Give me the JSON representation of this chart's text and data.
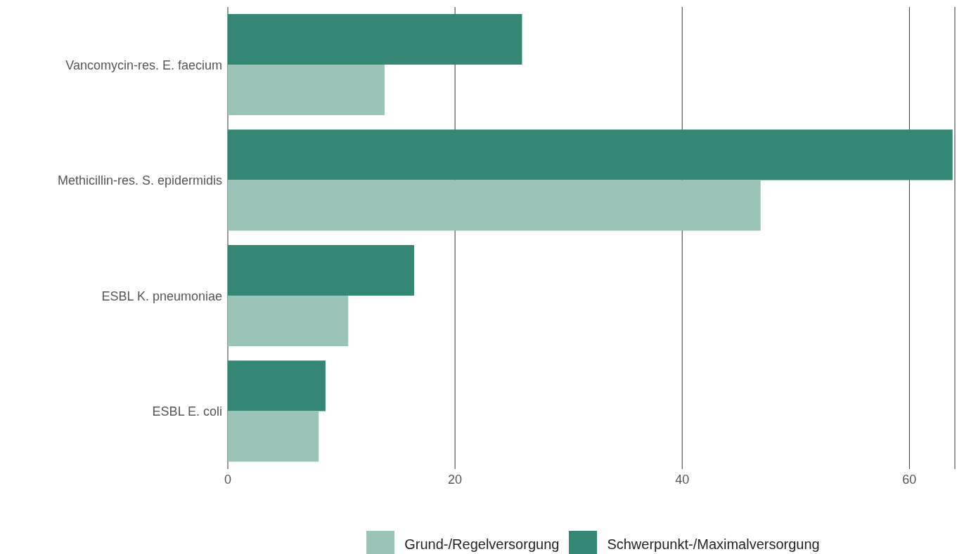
{
  "chart_data": {
    "type": "bar",
    "orientation": "horizontal",
    "categories": [
      "Vancomycin-res. E. faecium",
      "Methicillin-res. S. epidermidis",
      "ESBL K. pneumoniae",
      "ESBL E. coli"
    ],
    "series": [
      {
        "name": "Grund-/Regelversorgung",
        "color": "#9bc4b9",
        "values": [
          13.8,
          46.9,
          10.6,
          8.0
        ]
      },
      {
        "name": "Schwerpunkt-/Maximalversorgung",
        "color": "#348775",
        "values": [
          25.9,
          63.8,
          16.4,
          8.6
        ]
      }
    ],
    "xlim": [
      0,
      64
    ],
    "xticks": [
      0,
      20,
      40,
      60
    ],
    "grid": "x",
    "legend": "bottom"
  }
}
